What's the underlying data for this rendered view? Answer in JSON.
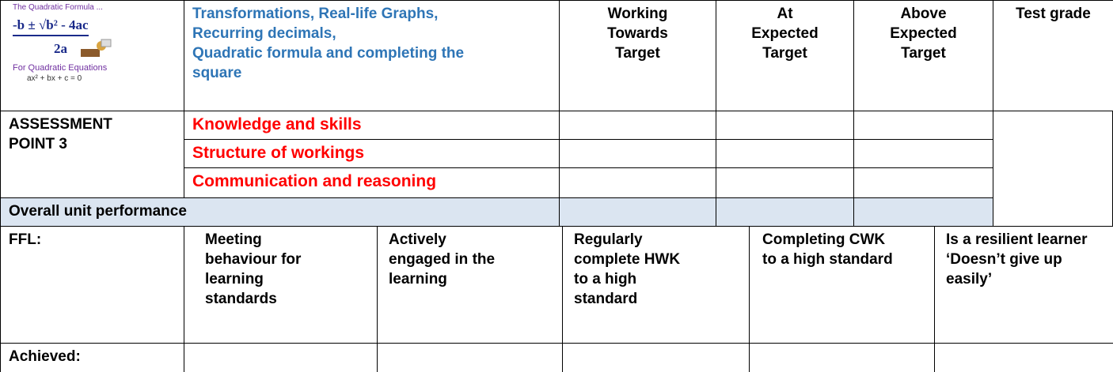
{
  "logo": {
    "caption": "The Quadratic Formula ...",
    "numerator": "-b ± √b² - 4ac",
    "denominator": "2a",
    "footer": "For Quadratic Equations",
    "equation": "ax² + bx + c = 0"
  },
  "header": {
    "topics": [
      "Transformations, Real-life Graphs,",
      "Recurring decimals,",
      "Quadratic formula and completing the",
      "square"
    ],
    "columns": [
      "Working Towards Target",
      "At Expected Target",
      "Above Expected Target",
      "Test grade"
    ]
  },
  "assessment": {
    "label": "ASSESSMENT POINT 3",
    "criteria": [
      "Knowledge and skills",
      "Structure of workings",
      "Communication and reasoning"
    ]
  },
  "overall": "Overall unit performance",
  "ffl": {
    "label": "FFL:",
    "items": [
      "Meeting behaviour for learning standards",
      "Actively engaged in the learning",
      "Regularly complete HWK to a high standard",
      "Completing CWK to a high standard",
      "Is a resilient learner ‘Doesn’t give up easily’"
    ]
  },
  "achieved": "Achieved:"
}
